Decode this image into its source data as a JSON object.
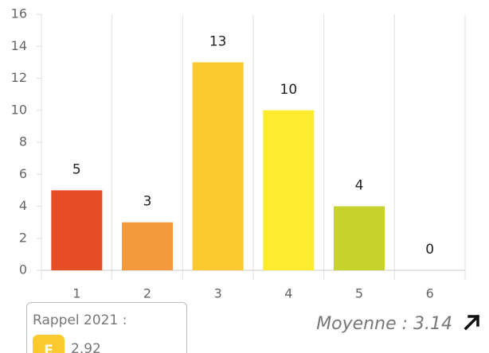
{
  "chart_data": {
    "type": "bar",
    "categories": [
      "1",
      "2",
      "3",
      "4",
      "5",
      "6"
    ],
    "values": [
      5,
      3,
      13,
      10,
      4,
      0
    ],
    "colors": [
      "#e44d26",
      "#f39a3d",
      "#fcc92e",
      "#fdeb30",
      "#c7d22c",
      null
    ],
    "ylim": [
      0,
      16
    ],
    "yticks": [
      0,
      2,
      4,
      6,
      8,
      10,
      12,
      14,
      16
    ],
    "grid": false,
    "data_labels": true
  },
  "summary": {
    "recall_label": "Rappel 2021 :",
    "recall_grade": "E",
    "recall_value": "2.92",
    "average": "Moyenne : 3.14"
  }
}
